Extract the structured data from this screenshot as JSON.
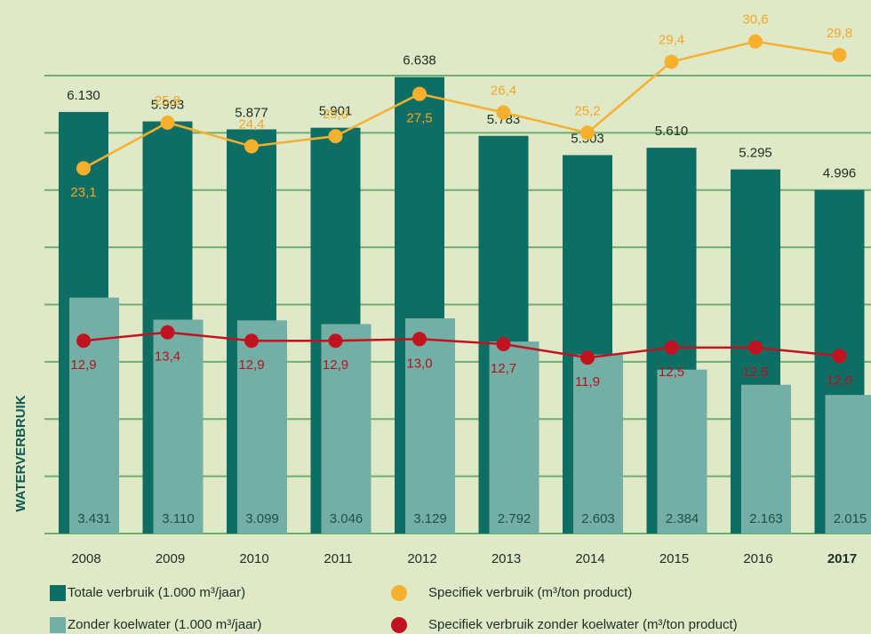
{
  "chart_data": {
    "type": "bar-line",
    "y_axis_label": "WATERVERBRUIK",
    "categories": [
      "2008",
      "2009",
      "2010",
      "2011",
      "2012",
      "2013",
      "2014",
      "2015",
      "2016",
      "2017"
    ],
    "ylim": [
      0,
      7500
    ],
    "y2lim": [
      1.5,
      32
    ],
    "grid": true,
    "series": [
      {
        "name": "Totale verbruik (1.000 m³/jaar)",
        "kind": "bar",
        "color": "#0e6e63",
        "axis": "y",
        "values": [
          6130,
          5993,
          5877,
          5901,
          6638,
          5783,
          5503,
          5610,
          5295,
          4996
        ],
        "value_labels": [
          "6.130",
          "5.993",
          "5.877",
          "5.901",
          "6.638",
          "5.783",
          "5.503",
          "5.610",
          "5.295",
          "4.996"
        ]
      },
      {
        "name": "Zonder koelwater (1.000 m³/jaar)",
        "kind": "bar",
        "color": "#74afa6",
        "axis": "y",
        "values": [
          3431,
          3110,
          3099,
          3046,
          3129,
          2792,
          2603,
          2384,
          2163,
          2015
        ],
        "value_labels": [
          "3.431",
          "3.110",
          "3.099",
          "3.046",
          "3.129",
          "2.792",
          "2.603",
          "2.384",
          "2.163",
          "2.015"
        ]
      },
      {
        "name": "Specifiek verbruik (m³/ton product)",
        "kind": "line",
        "color": "#f7b02d",
        "axis": "y2",
        "values": [
          23.1,
          25.8,
          24.4,
          25.0,
          27.5,
          26.4,
          25.2,
          29.4,
          30.6,
          29.8
        ],
        "value_labels": [
          "23,1",
          "25,8",
          "24,4",
          "25,0",
          "27,5",
          "26,4",
          "25,2",
          "29,4",
          "30,6",
          "29,8"
        ]
      },
      {
        "name": "Specifiek verbruik zonder koelwater (m³/ton product)",
        "kind": "line",
        "color": "#c1121f",
        "axis": "y2",
        "values": [
          12.9,
          13.4,
          12.9,
          12.9,
          13.0,
          12.7,
          11.9,
          12.5,
          12.5,
          12.0
        ],
        "value_labels": [
          "12,9",
          "13,4",
          "12,9",
          "12,9",
          "13,0",
          "12,7",
          "11,9",
          "12,5",
          "12,5",
          "12,0"
        ]
      }
    ]
  }
}
